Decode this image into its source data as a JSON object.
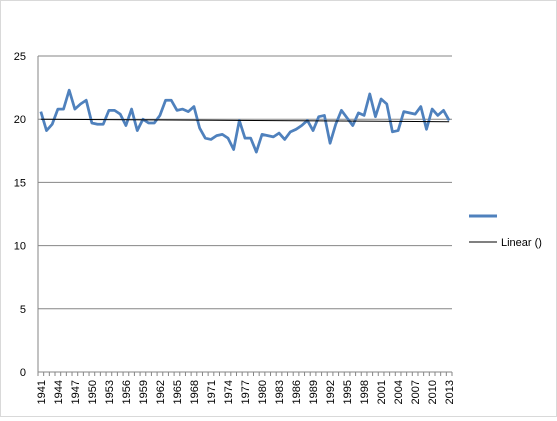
{
  "chart_data": {
    "type": "line",
    "title": "",
    "xlabel": "",
    "ylabel": "",
    "ylim": [
      0,
      25
    ],
    "yticks": [
      0,
      5,
      10,
      15,
      20,
      25
    ],
    "grid": true,
    "legend_placement": "right",
    "x": [
      1941,
      1942,
      1943,
      1944,
      1945,
      1946,
      1947,
      1948,
      1949,
      1950,
      1951,
      1952,
      1953,
      1954,
      1955,
      1956,
      1957,
      1958,
      1959,
      1960,
      1961,
      1962,
      1963,
      1964,
      1965,
      1966,
      1967,
      1968,
      1969,
      1970,
      1971,
      1972,
      1973,
      1974,
      1975,
      1976,
      1977,
      1978,
      1979,
      1980,
      1981,
      1982,
      1983,
      1984,
      1985,
      1986,
      1987,
      1988,
      1989,
      1990,
      1991,
      1992,
      1993,
      1994,
      1995,
      1996,
      1997,
      1998,
      1999,
      2000,
      2001,
      2002,
      2003,
      2004,
      2005,
      2006,
      2007,
      2008,
      2009,
      2010,
      2011,
      2012,
      2013
    ],
    "x_tick_labels": [
      "1941",
      "1944",
      "1947",
      "1950",
      "1953",
      "1956",
      "1959",
      "1962",
      "1965",
      "1968",
      "1971",
      "1974",
      "1977",
      "1980",
      "1983",
      "1986",
      "1989",
      "1992",
      "1995",
      "1998",
      "2001",
      "2004",
      "2007",
      "2010",
      "2013"
    ],
    "series": [
      {
        "name": "",
        "color": "#4f81bd",
        "values": [
          20.6,
          19.1,
          19.6,
          20.8,
          20.8,
          22.3,
          20.8,
          21.2,
          21.5,
          19.7,
          19.6,
          19.6,
          20.7,
          20.7,
          20.4,
          19.5,
          20.8,
          19.1,
          20.0,
          19.7,
          19.7,
          20.3,
          21.5,
          21.5,
          20.7,
          20.8,
          20.6,
          21.0,
          19.3,
          18.5,
          18.4,
          18.7,
          18.8,
          18.5,
          17.6,
          19.9,
          18.5,
          18.5,
          17.4,
          18.8,
          18.7,
          18.6,
          18.9,
          18.4,
          19.0,
          19.2,
          19.5,
          19.9,
          19.1,
          20.2,
          20.3,
          18.1,
          19.6,
          20.7,
          20.1,
          19.5,
          20.5,
          20.3,
          22.0,
          20.2,
          21.6,
          21.2,
          19.0,
          19.1,
          20.6,
          20.5,
          20.4,
          21.0,
          19.2,
          20.8,
          20.3,
          20.7,
          19.9
        ]
      }
    ],
    "trendline": {
      "name": "Linear ()",
      "color": "#000000",
      "start": 20.0,
      "end": 19.8
    }
  }
}
